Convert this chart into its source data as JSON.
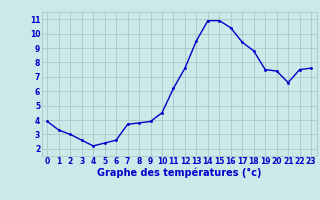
{
  "x": [
    0,
    1,
    2,
    3,
    4,
    5,
    6,
    7,
    8,
    9,
    10,
    11,
    12,
    13,
    14,
    15,
    16,
    17,
    18,
    19,
    20,
    21,
    22,
    23
  ],
  "y": [
    3.9,
    3.3,
    3.0,
    2.6,
    2.2,
    2.4,
    2.6,
    3.7,
    3.8,
    3.9,
    4.5,
    6.2,
    7.6,
    9.5,
    10.9,
    10.9,
    10.4,
    9.4,
    8.8,
    7.5,
    7.4,
    6.6,
    7.5,
    7.6
  ],
  "xlabel": "Graphe des températures (°c)",
  "xlim": [
    -0.5,
    23.5
  ],
  "ylim": [
    1.5,
    11.5
  ],
  "yticks": [
    2,
    3,
    4,
    5,
    6,
    7,
    8,
    9,
    10,
    11
  ],
  "xticks": [
    0,
    1,
    2,
    3,
    4,
    5,
    6,
    7,
    8,
    9,
    10,
    11,
    12,
    13,
    14,
    15,
    16,
    17,
    18,
    19,
    20,
    21,
    22,
    23
  ],
  "xtick_labels": [
    "0",
    "1",
    "2",
    "3",
    "4",
    "5",
    "6",
    "7",
    "8",
    "9",
    "10",
    "11",
    "12",
    "13",
    "14",
    "15",
    "16",
    "17",
    "18",
    "19",
    "20",
    "21",
    "22",
    "23"
  ],
  "line_color": "#0000cc",
  "marker_color": "#0000cc",
  "bg_color": "#cce8e8",
  "grid_color": "#aac8c8",
  "axis_label_color": "#0000cc",
  "bottom_bar_color": "#3355aa",
  "tick_fontsize": 5.5,
  "label_fontsize": 7.0
}
